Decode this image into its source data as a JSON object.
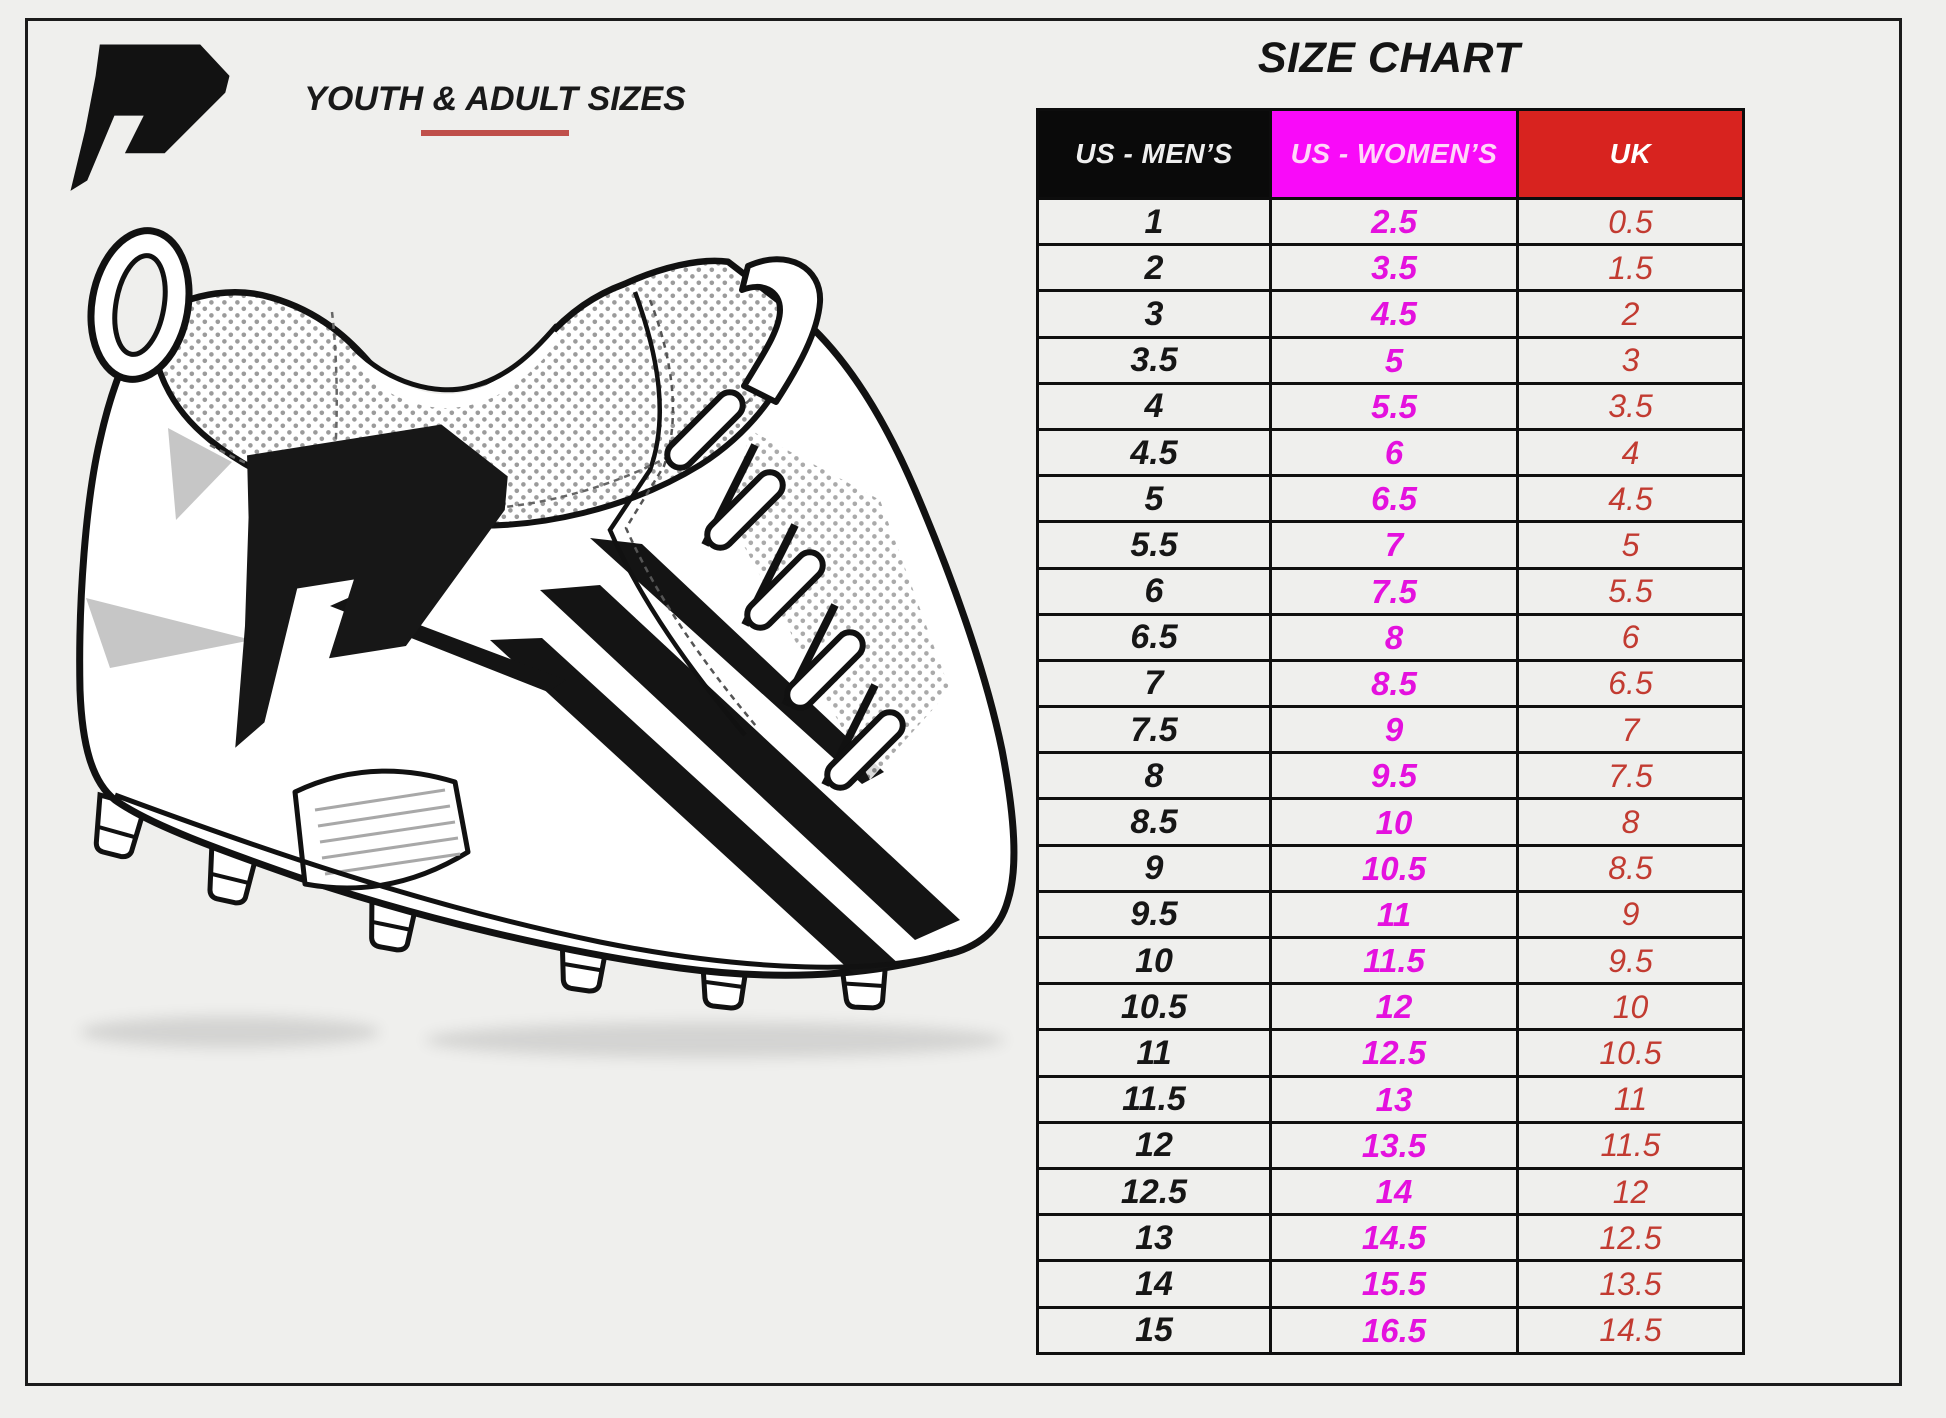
{
  "header": {
    "brand_logo": "phenom-p-lightning-logo",
    "subtitle": "YOUTH & ADULT SIZES",
    "chart_title": "SIZE CHART"
  },
  "illustration": {
    "name": "football-cleat-line-art",
    "description": "White high-top football cleat, side view, with brand P logo, laces, mesh collar and studs"
  },
  "chart_data": {
    "type": "table",
    "title": "SIZE CHART",
    "columns": [
      {
        "label": "US - MEN’S",
        "bg": "#0a0a0a",
        "text": "#efefef"
      },
      {
        "label": "US - WOMEN’S",
        "bg": "#f90af9",
        "text": "#ffd7f8"
      },
      {
        "label": "UK",
        "bg": "#d8231f",
        "text": "#ffffff"
      }
    ],
    "rows": [
      [
        "1",
        "2.5",
        "0.5"
      ],
      [
        "2",
        "3.5",
        "1.5"
      ],
      [
        "3",
        "4.5",
        "2"
      ],
      [
        "3.5",
        "5",
        "3"
      ],
      [
        "4",
        "5.5",
        "3.5"
      ],
      [
        "4.5",
        "6",
        "4"
      ],
      [
        "5",
        "6.5",
        "4.5"
      ],
      [
        "5.5",
        "7",
        "5"
      ],
      [
        "6",
        "7.5",
        "5.5"
      ],
      [
        "6.5",
        "8",
        "6"
      ],
      [
        "7",
        "8.5",
        "6.5"
      ],
      [
        "7.5",
        "9",
        "7"
      ],
      [
        "8",
        "9.5",
        "7.5"
      ],
      [
        "8.5",
        "10",
        "8"
      ],
      [
        "9",
        "10.5",
        "8.5"
      ],
      [
        "9.5",
        "11",
        "9"
      ],
      [
        "10",
        "11.5",
        "9.5"
      ],
      [
        "10.5",
        "12",
        "10"
      ],
      [
        "11",
        "12.5",
        "10.5"
      ],
      [
        "11.5",
        "13",
        "11"
      ],
      [
        "12",
        "13.5",
        "11.5"
      ],
      [
        "12.5",
        "14",
        "12"
      ],
      [
        "13",
        "14.5",
        "12.5"
      ],
      [
        "14",
        "15.5",
        "13.5"
      ],
      [
        "15",
        "16.5",
        "14.5"
      ]
    ]
  },
  "colors": {
    "page_bg": "#efefed",
    "frame_border": "#1b1b1b",
    "underline_red": "#bf4f4a",
    "mens_text": "#161616",
    "womens_text": "#e411de",
    "uk_text": "#c23b31",
    "grid": "#0f0f0f"
  }
}
